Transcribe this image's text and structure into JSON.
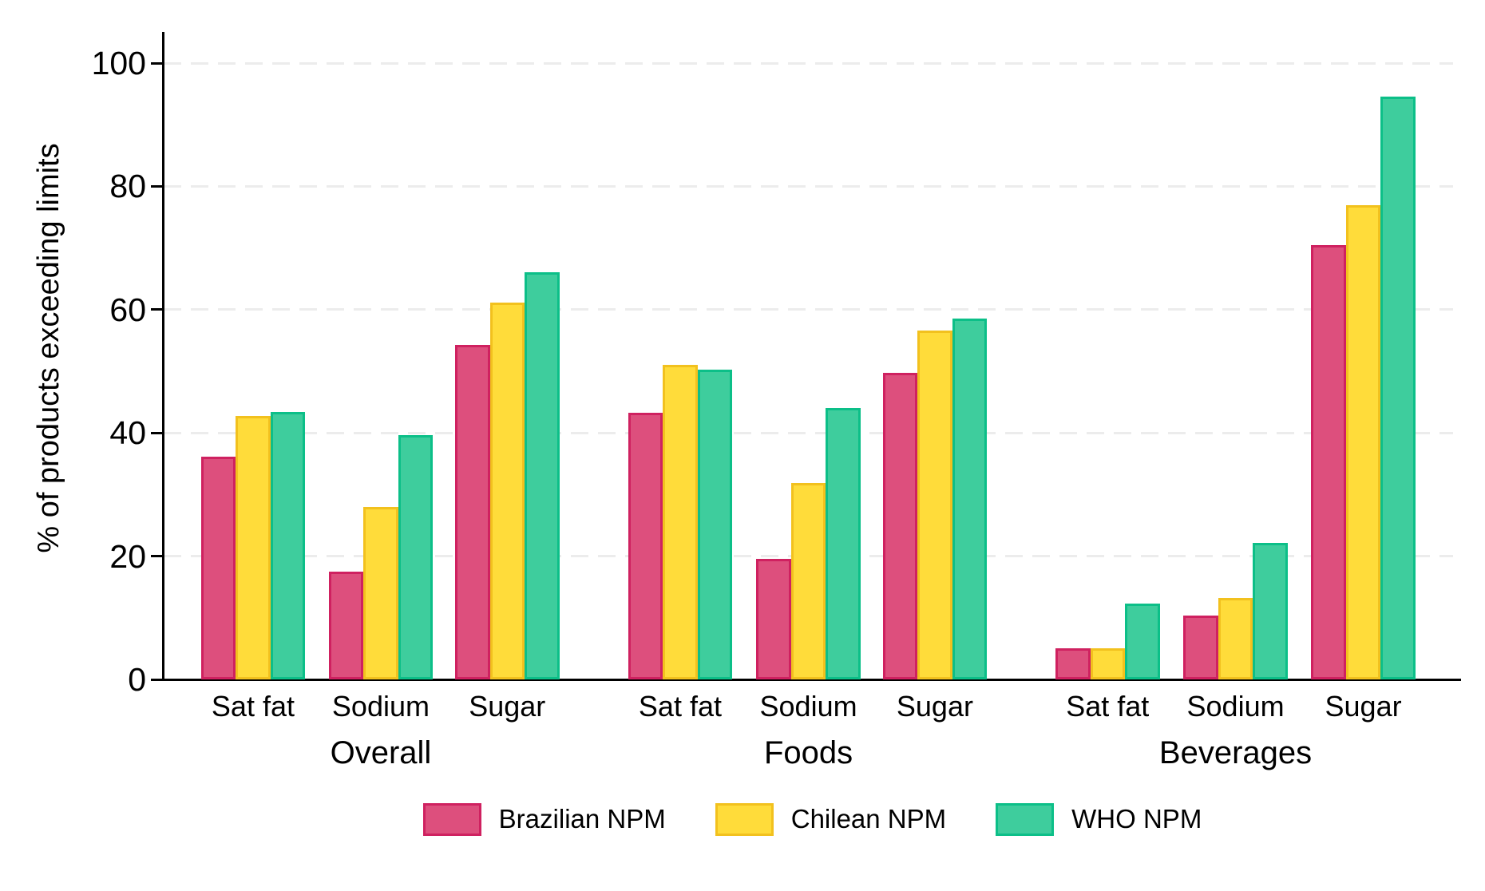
{
  "figure": {
    "background": "#ffffff",
    "text_color": "#000000",
    "gridline_color": "#ececec"
  },
  "chart_data": {
    "type": "bar",
    "title": "",
    "xlabel": "",
    "ylabel": "% of products exceeding limits",
    "ylim": [
      0,
      105
    ],
    "yticks": [
      0,
      20,
      40,
      60,
      80,
      100
    ],
    "grid": "horizontal-dashed",
    "legend_position": "bottom",
    "groups": [
      {
        "label": "Overall",
        "clusters": [
          {
            "category": "Sat fat",
            "values": [
              36.2,
              42.7,
              43.4
            ]
          },
          {
            "category": "Sodium",
            "values": [
              17.5,
              28.0,
              39.6
            ]
          },
          {
            "category": "Sugar",
            "values": [
              54.3,
              61.2,
              66.1
            ]
          }
        ]
      },
      {
        "label": "Foods",
        "clusters": [
          {
            "category": "Sat fat",
            "values": [
              43.3,
              51.1,
              50.3
            ]
          },
          {
            "category": "Sodium",
            "values": [
              19.5,
              31.9,
              44.1
            ]
          },
          {
            "category": "Sugar",
            "values": [
              49.8,
              56.6,
              58.5
            ]
          }
        ]
      },
      {
        "label": "Beverages",
        "clusters": [
          {
            "category": "Sat fat",
            "values": [
              5.0,
              5.0,
              12.3
            ]
          },
          {
            "category": "Sodium",
            "values": [
              10.4,
              13.2,
              22.1
            ]
          },
          {
            "category": "Sugar",
            "values": [
              70.5,
              77.0,
              94.5
            ]
          }
        ]
      }
    ],
    "series": [
      {
        "name": "Brazilian NPM",
        "fill": "#dd4f7d",
        "stroke": "#cf2160"
      },
      {
        "name": "Chilean NPM",
        "fill": "#ffdc3a",
        "stroke": "#f2c11e"
      },
      {
        "name": "WHO NPM",
        "fill": "#3ecd9d",
        "stroke": "#0cbf88"
      }
    ]
  }
}
